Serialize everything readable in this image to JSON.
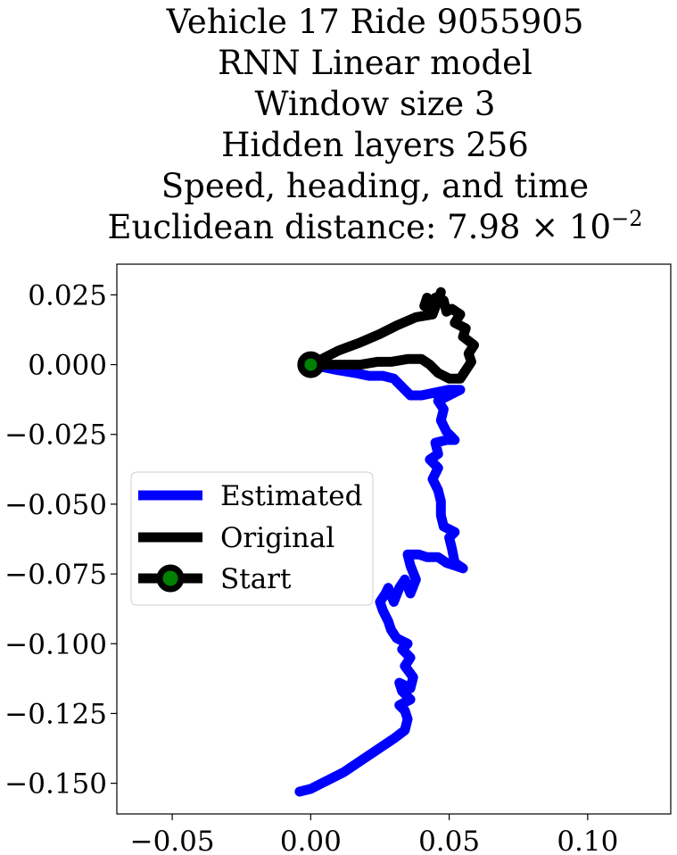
{
  "chart_data": {
    "type": "line",
    "title_lines": [
      "Vehicle 17 Ride 9055905",
      "RNN Linear model",
      "Window size 3",
      "Hidden layers 256",
      "Speed, heading, and time"
    ],
    "title_metric": {
      "prefix": "Euclidean distance: 7.98",
      "times": "×",
      "base": "10",
      "exponent": "−2"
    },
    "xlim": [
      -0.07,
      0.13
    ],
    "ylim": [
      -0.161,
      0.036
    ],
    "x_ticks": [
      {
        "value": -0.05,
        "label": "−0.05"
      },
      {
        "value": 0.0,
        "label": "0.00"
      },
      {
        "value": 0.05,
        "label": "0.05"
      },
      {
        "value": 0.1,
        "label": "0.10"
      }
    ],
    "y_ticks": [
      {
        "value": 0.025,
        "label": "0.025"
      },
      {
        "value": 0.0,
        "label": "0.000"
      },
      {
        "value": -0.025,
        "label": "−0.025"
      },
      {
        "value": -0.05,
        "label": "−0.050"
      },
      {
        "value": -0.075,
        "label": "−0.075"
      },
      {
        "value": -0.1,
        "label": "−0.100"
      },
      {
        "value": -0.125,
        "label": "−0.125"
      },
      {
        "value": -0.15,
        "label": "−0.150"
      }
    ],
    "grid": false,
    "legend_position": "center-left",
    "series": [
      {
        "name": "Estimated",
        "color": "#0000ff",
        "points": [
          [
            -0.004,
            -0.153
          ],
          [
            0.0,
            -0.152
          ],
          [
            0.006,
            -0.149
          ],
          [
            0.012,
            -0.146
          ],
          [
            0.018,
            -0.142
          ],
          [
            0.024,
            -0.138
          ],
          [
            0.03,
            -0.134
          ],
          [
            0.034,
            -0.131
          ],
          [
            0.035,
            -0.127
          ],
          [
            0.034,
            -0.124
          ],
          [
            0.032,
            -0.122
          ],
          [
            0.036,
            -0.12
          ],
          [
            0.033,
            -0.117
          ],
          [
            0.032,
            -0.114
          ],
          [
            0.036,
            -0.116
          ],
          [
            0.037,
            -0.112
          ],
          [
            0.034,
            -0.108
          ],
          [
            0.036,
            -0.105
          ],
          [
            0.033,
            -0.102
          ],
          [
            0.035,
            -0.1
          ],
          [
            0.031,
            -0.098
          ],
          [
            0.029,
            -0.095
          ],
          [
            0.028,
            -0.092
          ],
          [
            0.026,
            -0.088
          ],
          [
            0.025,
            -0.085
          ],
          [
            0.027,
            -0.082
          ],
          [
            0.028,
            -0.08
          ],
          [
            0.03,
            -0.085
          ],
          [
            0.032,
            -0.08
          ],
          [
            0.034,
            -0.077
          ],
          [
            0.036,
            -0.082
          ],
          [
            0.038,
            -0.077
          ],
          [
            0.036,
            -0.072
          ],
          [
            0.035,
            -0.068
          ],
          [
            0.039,
            -0.068
          ],
          [
            0.042,
            -0.069
          ],
          [
            0.046,
            -0.069
          ],
          [
            0.049,
            -0.071
          ],
          [
            0.052,
            -0.072
          ],
          [
            0.055,
            -0.073
          ],
          [
            0.052,
            -0.071
          ],
          [
            0.051,
            -0.066
          ],
          [
            0.05,
            -0.062
          ],
          [
            0.052,
            -0.06
          ],
          [
            0.048,
            -0.058
          ],
          [
            0.047,
            -0.054
          ],
          [
            0.047,
            -0.049
          ],
          [
            0.046,
            -0.045
          ],
          [
            0.044,
            -0.041
          ],
          [
            0.046,
            -0.037
          ],
          [
            0.043,
            -0.034
          ],
          [
            0.046,
            -0.032
          ],
          [
            0.045,
            -0.028
          ],
          [
            0.049,
            -0.027
          ],
          [
            0.052,
            -0.027
          ],
          [
            0.049,
            -0.024
          ],
          [
            0.047,
            -0.02
          ],
          [
            0.048,
            -0.016
          ],
          [
            0.046,
            -0.013
          ],
          [
            0.05,
            -0.011
          ],
          [
            0.054,
            -0.009
          ],
          [
            0.05,
            -0.009
          ],
          [
            0.045,
            -0.01
          ],
          [
            0.04,
            -0.011
          ],
          [
            0.036,
            -0.011
          ],
          [
            0.033,
            -0.008
          ],
          [
            0.03,
            -0.005
          ],
          [
            0.026,
            -0.004
          ],
          [
            0.021,
            -0.004
          ],
          [
            0.016,
            -0.003
          ],
          [
            0.01,
            -0.002
          ],
          [
            0.005,
            -0.001
          ],
          [
            0.0,
            0.0
          ]
        ]
      },
      {
        "name": "Original",
        "color": "#000000",
        "points": [
          [
            0.0,
            0.0
          ],
          [
            0.005,
            0.0
          ],
          [
            0.012,
            0.0
          ],
          [
            0.018,
            0.0
          ],
          [
            0.024,
            0.001
          ],
          [
            0.029,
            0.001
          ],
          [
            0.035,
            0.002
          ],
          [
            0.04,
            0.002
          ],
          [
            0.043,
            0.0
          ],
          [
            0.046,
            -0.003
          ],
          [
            0.05,
            -0.005
          ],
          [
            0.054,
            -0.005
          ],
          [
            0.056,
            -0.002
          ],
          [
            0.058,
            0.001
          ],
          [
            0.057,
            0.004
          ],
          [
            0.059,
            0.007
          ],
          [
            0.055,
            0.01
          ],
          [
            0.056,
            0.013
          ],
          [
            0.052,
            0.015
          ],
          [
            0.054,
            0.018
          ],
          [
            0.051,
            0.02
          ],
          [
            0.049,
            0.019
          ],
          [
            0.048,
            0.023
          ],
          [
            0.045,
            0.024
          ],
          [
            0.044,
            0.021
          ],
          [
            0.042,
            0.024
          ],
          [
            0.041,
            0.021
          ],
          [
            0.046,
            0.022
          ],
          [
            0.047,
            0.026
          ],
          [
            0.044,
            0.018
          ],
          [
            0.038,
            0.017
          ],
          [
            0.031,
            0.014
          ],
          [
            0.025,
            0.011
          ],
          [
            0.018,
            0.008
          ],
          [
            0.01,
            0.005
          ],
          [
            0.004,
            0.002
          ],
          [
            0.0,
            0.0
          ]
        ]
      }
    ],
    "start_point": {
      "name": "Start",
      "x": 0.0,
      "y": 0.0,
      "fill": "#008000",
      "edge": "#000000"
    }
  }
}
